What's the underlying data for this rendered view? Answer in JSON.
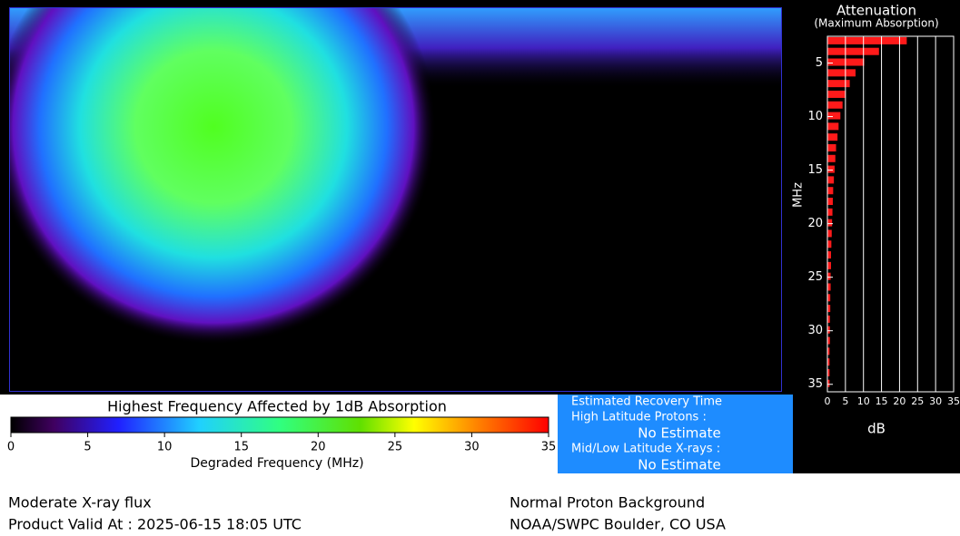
{
  "map": {
    "colorbar": {
      "title": "Highest Frequency Affected by 1dB Absorption",
      "label": "Degraded Frequency (MHz)",
      "lim": [
        0,
        35
      ],
      "ticks": [
        0,
        5,
        10,
        15,
        20,
        25,
        30,
        35
      ]
    }
  },
  "chart_data": {
    "type": "hbar",
    "title": "Attenuation",
    "subtitle": "(Maximum Absorption)",
    "x_label": "dB",
    "y_label": "MHz",
    "color": "#ff1a1a",
    "x": [
      3,
      4,
      5,
      6,
      7,
      8,
      9,
      10,
      11,
      12,
      13,
      14,
      15,
      16,
      17,
      18,
      19,
      20,
      21,
      22,
      23,
      24,
      25,
      26,
      27,
      28,
      29,
      30,
      31,
      32,
      33,
      34,
      35
    ],
    "values": [
      22,
      14.3,
      10.2,
      7.8,
      6.2,
      5.1,
      4.2,
      3.6,
      3.1,
      2.8,
      2.4,
      2.2,
      2.0,
      1.8,
      1.6,
      1.5,
      1.4,
      1.3,
      1.2,
      1.1,
      1.0,
      1.0,
      0.9,
      0.9,
      0.8,
      0.8,
      0.7,
      0.7,
      0.7,
      0.6,
      0.6,
      0.6,
      0.6
    ],
    "xlim": [
      0,
      35
    ],
    "xticks": [
      0,
      5,
      10,
      15,
      20,
      25,
      30,
      35
    ],
    "ylim": [
      2.5,
      35.7
    ],
    "yticks": [
      5,
      10,
      15,
      20,
      25,
      30,
      35
    ],
    "grid": true
  },
  "recovery": {
    "title": "Estimated Recovery Time",
    "high_label": "High Latitude Protons :",
    "high_value": "No Estimate",
    "mid_label": "Mid/Low Latitude X-rays :",
    "mid_value": "No Estimate"
  },
  "footer": {
    "left_1": "Moderate X-ray flux",
    "left_2": "Product Valid At : 2025-06-15 18:05 UTC",
    "right_1": "Normal Proton Background",
    "right_2": "NOAA/SWPC Boulder, CO USA"
  }
}
